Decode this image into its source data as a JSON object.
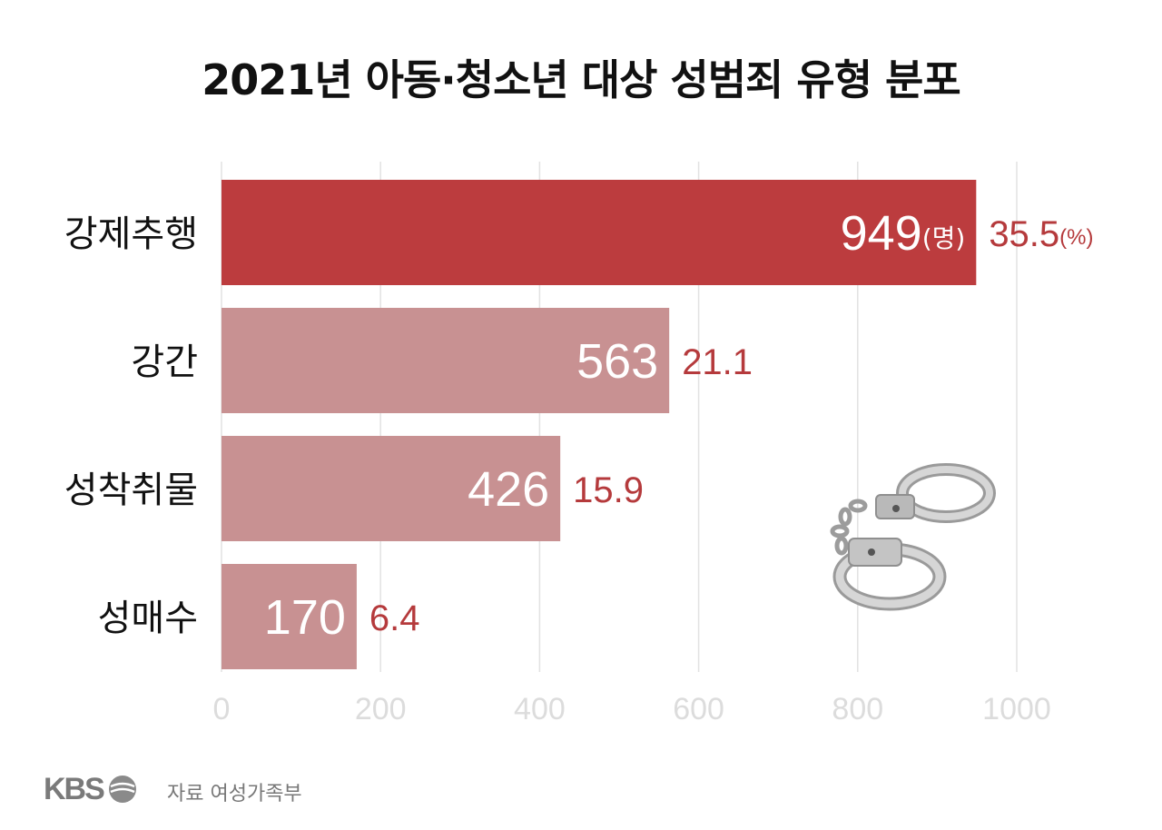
{
  "chart_data": {
    "type": "bar",
    "orientation": "horizontal",
    "title": "2021년 아동·청소년 대상 성범죄 유형 분포",
    "categories": [
      "강제추행",
      "강간",
      "성착취물",
      "성매수"
    ],
    "values": [
      949,
      563,
      426,
      170
    ],
    "percent_labels": [
      "35.5",
      "21.1",
      "15.9",
      "6.4"
    ],
    "value_unit": "(명)",
    "percent_unit": "(%)",
    "xlim": [
      0,
      1000
    ],
    "x_ticks": [
      "0",
      "200",
      "400",
      "600",
      "800",
      "1000"
    ],
    "x_tick_values": [
      0,
      200,
      400,
      600,
      800,
      1000
    ],
    "grid": true,
    "colors": {
      "highlight": "#bc3c3e",
      "bar": "#c89192",
      "percent_text": "#b53a3c",
      "grid": "#e2e2e2",
      "tick_text": "#dcdcdc"
    }
  },
  "footer": {
    "logo_text": "KBS",
    "source_text": "자료 여성가족부"
  },
  "decorations": {
    "icon": "handcuffs-icon"
  }
}
